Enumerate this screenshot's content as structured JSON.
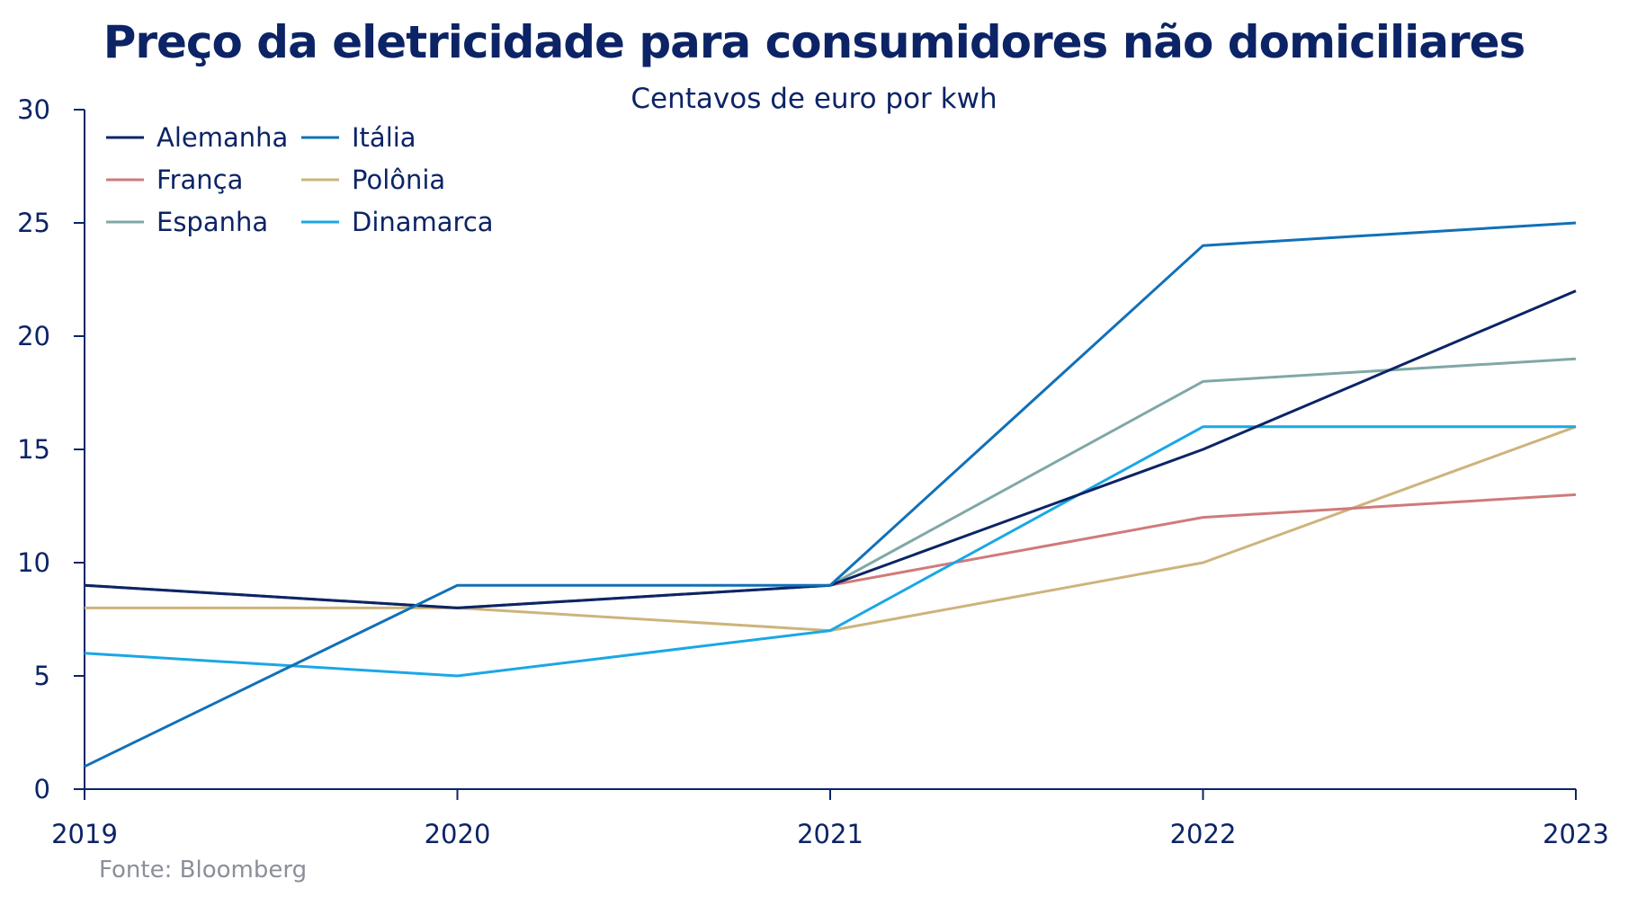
{
  "chart_data": {
    "type": "line",
    "title": "Preço da eletricidade para consumidores não domiciliares",
    "subtitle": "Centavos de euro por kwh",
    "source": "Fonte: Bloomberg",
    "x": [
      "2019",
      "2020",
      "2021",
      "2022",
      "2023"
    ],
    "ylim": [
      0,
      30
    ],
    "yticks": [
      0,
      5,
      10,
      15,
      20,
      25,
      30
    ],
    "grid": false,
    "legend_position": "top-left",
    "series": [
      {
        "name": "Alemanha",
        "color": "#0c2466",
        "values": [
          9,
          8,
          9,
          15,
          22
        ]
      },
      {
        "name": "Itália",
        "color": "#1170b8",
        "values": [
          1,
          9,
          9,
          24,
          25
        ]
      },
      {
        "name": "França",
        "color": "#d07a7a",
        "values": [
          9,
          8,
          9,
          12,
          13
        ]
      },
      {
        "name": "Polônia",
        "color": "#cdb47c",
        "values": [
          8,
          8,
          7,
          10,
          16
        ]
      },
      {
        "name": "Espanha",
        "color": "#7fa8a6",
        "values": [
          9,
          8,
          9,
          18,
          19
        ]
      },
      {
        "name": "Dinamarca",
        "color": "#1aa7e6",
        "values": [
          6,
          5,
          7,
          16,
          16
        ]
      }
    ]
  }
}
